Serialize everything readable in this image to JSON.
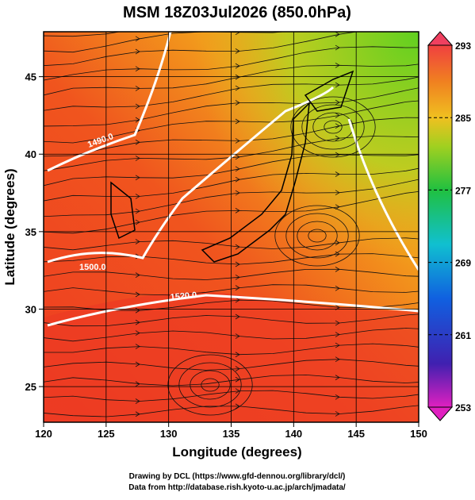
{
  "title": "MSM 18Z03Jul2026 (850.0hPa)",
  "map": {
    "xlabel": "Longitude (degrees)",
    "ylabel": "Latitude  (degrees)",
    "xlim": [
      120,
      150
    ],
    "ylim": [
      22.7,
      47.9
    ],
    "xticks": [
      120,
      125,
      130,
      135,
      140,
      145,
      150
    ],
    "yticks": [
      25,
      30,
      35,
      40,
      45
    ]
  },
  "colorbar": {
    "lim": [
      253,
      293
    ],
    "ticks": [
      253,
      261,
      269,
      277,
      285,
      293
    ]
  },
  "contour_labels": [
    "1490.0",
    "1500.0",
    "1520.0"
  ],
  "footer": [
    "Drawing by DCL (https://www.gfd-dennou.org/library/dcl/)",
    "Data from http://database.rish.kyoto-u.ac.jp/arch/jmadata/"
  ]
}
